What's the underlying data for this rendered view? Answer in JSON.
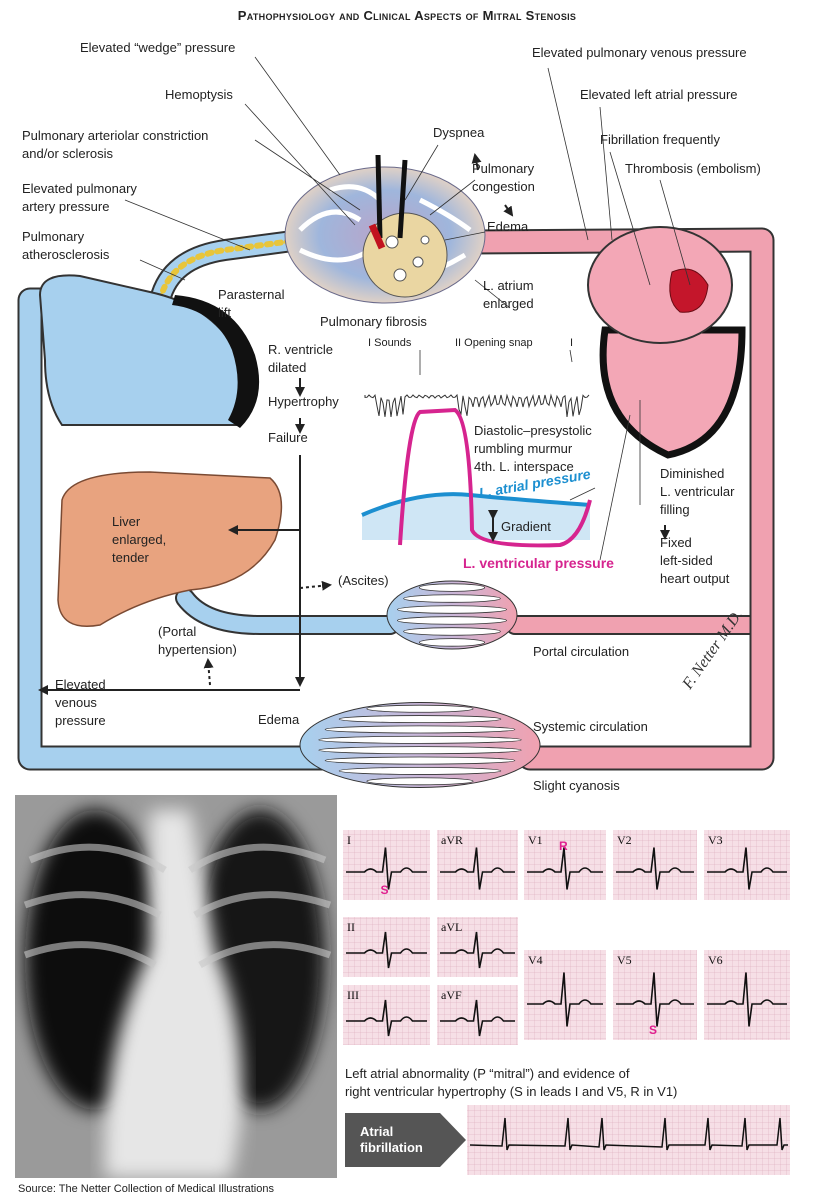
{
  "title": "Pathophysiology and Clinical Aspects of Mitral Stenosis",
  "labels": [
    {
      "lines": [
        "Elevated “wedge” pressure"
      ]
    },
    {
      "lines": [
        "Hemoptysis"
      ]
    },
    {
      "lines": [
        "Pulmonary arteriolar constriction",
        "and/or sclerosis"
      ]
    },
    {
      "lines": [
        "Elevated pulmonary",
        "artery pressure"
      ]
    },
    {
      "lines": [
        "Pulmonary",
        "atherosclerosis"
      ]
    },
    {
      "lines": [
        "Dyspnea"
      ]
    },
    {
      "lines": [
        "Pulmonary",
        "congestion"
      ]
    },
    {
      "lines": [
        "Edema"
      ]
    },
    {
      "lines": [
        "Elevated pulmonary venous pressure"
      ]
    },
    {
      "lines": [
        "Elevated left atrial pressure"
      ]
    },
    {
      "lines": [
        "Fibrillation frequently"
      ]
    },
    {
      "lines": [
        "Thrombosis (embolism)"
      ]
    },
    {
      "lines": [
        "Parasternal",
        "lift"
      ]
    },
    {
      "lines": [
        "Pulmonary fibrosis"
      ]
    },
    {
      "lines": [
        "L. atrium",
        "enlarged"
      ]
    },
    {
      "lines": [
        "R. ventricle",
        "dilated"
      ]
    },
    {
      "lines": [
        "Hypertrophy"
      ]
    },
    {
      "lines": [
        "Failure"
      ]
    },
    {
      "lines": [
        "I Sounds"
      ]
    },
    {
      "lines": [
        "II Opening snap"
      ]
    },
    {
      "lines": [
        "I"
      ]
    },
    {
      "lines": [
        "Diastolic–presystolic",
        "rumbling murmur",
        "4th. L. interspace"
      ]
    },
    {
      "lines": [
        "L. atrial pressure"
      ]
    },
    {
      "lines": [
        "Gradient"
      ]
    },
    {
      "lines": [
        "L. ventricular pressure"
      ]
    },
    {
      "lines": [
        "Diminished",
        "L. ventricular",
        "filling"
      ]
    },
    {
      "lines": [
        "Fixed",
        "left-sided",
        "heart output"
      ]
    },
    {
      "lines": [
        "Liver",
        "enlarged,",
        "tender"
      ]
    },
    {
      "lines": [
        "(Ascites)"
      ]
    },
    {
      "lines": [
        "(Portal",
        "hypertension)"
      ]
    },
    {
      "lines": [
        "Portal circulation"
      ]
    },
    {
      "lines": [
        "Elevated",
        "venous",
        "pressure"
      ]
    },
    {
      "lines": [
        "Edema"
      ]
    },
    {
      "lines": [
        "Systemic circulation"
      ]
    },
    {
      "lines": [
        "Slight cyanosis"
      ]
    }
  ],
  "signature": "F. Netter M.D.",
  "ecg": {
    "leads": [
      {
        "lead": "I",
        "marker": "S"
      },
      {
        "lead": "aVR"
      },
      {
        "lead": "V1",
        "marker": "R"
      },
      {
        "lead": "V2"
      },
      {
        "lead": "V3"
      },
      {
        "lead": "II"
      },
      {
        "lead": "aVL"
      },
      {
        "lead": "III"
      },
      {
        "lead": "aVF"
      },
      {
        "lead": "V4"
      },
      {
        "lead": "V5",
        "marker": "S"
      },
      {
        "lead": "V6"
      }
    ],
    "caption": [
      "Left atrial abnormality (P “mitral”) and evidence of",
      "right ventricular hypertrophy (S in leads I and V5, R in V1)"
    ],
    "rhythm_label": [
      "Atrial",
      "fibrillation"
    ]
  },
  "source": "Source: The Netter Collection of Medical Illustrations"
}
